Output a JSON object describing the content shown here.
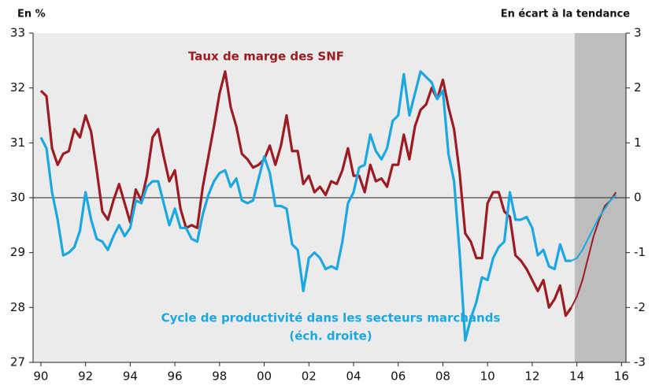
{
  "chart_data": {
    "type": "line",
    "y_axis_label": "En %",
    "y2_axis_label": "En écart à la tendance",
    "axis_note": "(éch. droite)",
    "shaded_from": 2013.9,
    "xlim": [
      1989.65,
      2016.2
    ],
    "xticks": [
      {
        "value": 1990,
        "label": "90"
      },
      {
        "value": 1992,
        "label": "92"
      },
      {
        "value": 1994,
        "label": "94"
      },
      {
        "value": 1996,
        "label": "96"
      },
      {
        "value": 1998,
        "label": "98"
      },
      {
        "value": 2000,
        "label": "00"
      },
      {
        "value": 2002,
        "label": "02"
      },
      {
        "value": 2004,
        "label": "04"
      },
      {
        "value": 2006,
        "label": "06"
      },
      {
        "value": 2008,
        "label": "08"
      },
      {
        "value": 2010,
        "label": "10"
      },
      {
        "value": 2012,
        "label": "12"
      },
      {
        "value": 2014,
        "label": "14"
      },
      {
        "value": 2016,
        "label": "16"
      }
    ],
    "ylim": [
      27,
      33
    ],
    "yticks": [
      27,
      28,
      29,
      30,
      31,
      32,
      33
    ],
    "y2lim": [
      -3,
      3
    ],
    "y2ticks": [
      -3,
      -2,
      -1,
      0,
      1,
      2,
      3
    ],
    "x": [
      1990,
      1990.25,
      1990.5,
      1990.75,
      1991,
      1991.25,
      1991.5,
      1991.75,
      1992,
      1992.25,
      1992.5,
      1992.75,
      1993,
      1993.25,
      1993.5,
      1993.75,
      1994,
      1994.25,
      1994.5,
      1994.75,
      1995,
      1995.25,
      1995.5,
      1995.75,
      1996,
      1996.25,
      1996.5,
      1996.75,
      1997,
      1997.25,
      1997.5,
      1997.75,
      1998,
      1998.25,
      1998.5,
      1998.75,
      1999,
      1999.25,
      1999.5,
      1999.75,
      2000,
      2000.25,
      2000.5,
      2000.75,
      2001,
      2001.25,
      2001.5,
      2001.75,
      2002,
      2002.25,
      2002.5,
      2002.75,
      2003,
      2003.25,
      2003.5,
      2003.75,
      2004,
      2004.25,
      2004.5,
      2004.75,
      2005,
      2005.25,
      2005.5,
      2005.75,
      2006,
      2006.25,
      2006.5,
      2006.75,
      2007,
      2007.25,
      2007.5,
      2007.75,
      2008,
      2008.25,
      2008.5,
      2008.75,
      2009,
      2009.25,
      2009.5,
      2009.75,
      2010,
      2010.25,
      2010.5,
      2010.75,
      2011,
      2011.25,
      2011.5,
      2011.75,
      2012,
      2012.25,
      2012.5,
      2012.75,
      2013,
      2013.25,
      2013.5,
      2013.75,
      2014,
      2014.25,
      2014.5,
      2014.75,
      2015,
      2015.25,
      2015.5,
      2015.75
    ],
    "series": [
      {
        "name": "Taux de marge des SNF",
        "color": "#9b1c23",
        "values": [
          31.95,
          31.85,
          30.9,
          30.6,
          30.8,
          30.85,
          31.25,
          31.1,
          31.5,
          31.2,
          30.5,
          29.75,
          29.6,
          29.95,
          30.25,
          29.9,
          29.55,
          30.15,
          29.95,
          30.4,
          31.1,
          31.25,
          30.75,
          30.3,
          30.5,
          29.8,
          29.45,
          29.5,
          29.45,
          30.2,
          30.75,
          31.3,
          31.9,
          32.3,
          31.65,
          31.3,
          30.8,
          30.7,
          30.55,
          30.6,
          30.7,
          30.95,
          30.6,
          30.95,
          31.5,
          30.85,
          30.85,
          30.25,
          30.4,
          30.1,
          30.2,
          30.05,
          30.3,
          30.25,
          30.5,
          30.9,
          30.4,
          30.4,
          30.1,
          30.6,
          30.3,
          30.35,
          30.2,
          30.6,
          30.6,
          31.15,
          30.7,
          31.3,
          31.6,
          31.7,
          32.0,
          31.8,
          32.15,
          31.65,
          31.25,
          30.45,
          29.35,
          29.2,
          28.9,
          28.9,
          29.9,
          30.1,
          30.1,
          29.75,
          29.65,
          28.95,
          28.85,
          28.7,
          28.5,
          28.3,
          28.5,
          28.0,
          28.15,
          28.4,
          27.85,
          28.0,
          28.2,
          28.5,
          28.9,
          29.3,
          29.6,
          29.85,
          29.95,
          30.1
        ]
      },
      {
        "name": "Cycle de productivité dans les secteurs marchands",
        "color": "#1ba8e0",
        "axis": "y2",
        "values": [
          1.1,
          0.9,
          0.1,
          -0.4,
          -1.05,
          -1.0,
          -0.9,
          -0.6,
          0.1,
          -0.4,
          -0.75,
          -0.8,
          -0.95,
          -0.7,
          -0.5,
          -0.7,
          -0.55,
          -0.05,
          -0.1,
          0.2,
          0.3,
          0.3,
          -0.1,
          -0.5,
          -0.2,
          -0.55,
          -0.55,
          -0.75,
          -0.8,
          -0.3,
          0.05,
          0.3,
          0.45,
          0.5,
          0.2,
          0.35,
          -0.05,
          -0.1,
          -0.05,
          0.35,
          0.75,
          0.45,
          -0.15,
          -0.15,
          -0.2,
          -0.85,
          -0.95,
          -1.7,
          -1.1,
          -1.0,
          -1.1,
          -1.3,
          -1.25,
          -1.3,
          -0.8,
          -0.1,
          0.1,
          0.55,
          0.6,
          1.15,
          0.85,
          0.7,
          0.9,
          1.4,
          1.5,
          2.25,
          1.5,
          1.9,
          2.3,
          2.2,
          2.1,
          1.8,
          1.95,
          0.8,
          0.3,
          -1.0,
          -2.6,
          -2.2,
          -1.9,
          -1.45,
          -1.5,
          -1.1,
          -0.9,
          -0.8,
          0.1,
          -0.4,
          -0.4,
          -0.35,
          -0.55,
          -1.05,
          -0.95,
          -1.25,
          -1.3,
          -0.85,
          -1.15,
          -1.15,
          -1.1,
          -0.95,
          -0.75,
          -0.55,
          -0.35,
          -0.2,
          -0.05,
          0.05
        ]
      }
    ]
  }
}
